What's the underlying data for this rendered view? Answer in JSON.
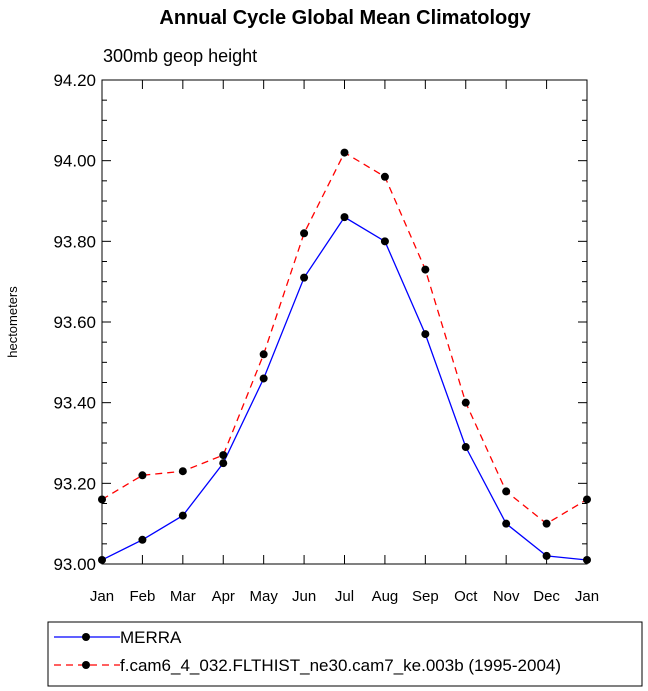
{
  "chart_data": {
    "type": "line",
    "title": "Annual Cycle Global Mean Climatology",
    "subtitle": "300mb geop height",
    "xlabel": "",
    "ylabel": "hectometers",
    "categories": [
      "Jan",
      "Feb",
      "Mar",
      "Apr",
      "May",
      "Jun",
      "Jul",
      "Aug",
      "Sep",
      "Oct",
      "Nov",
      "Dec",
      "Jan"
    ],
    "ylim": [
      93.0,
      94.2
    ],
    "y_major_ticks": [
      93.0,
      93.2,
      93.4,
      93.6,
      93.8,
      94.0,
      94.2
    ],
    "y_tick_labels": [
      "93.00",
      "93.20",
      "93.40",
      "93.60",
      "93.80",
      "94.00",
      "94.20"
    ],
    "y_minor_step": 0.05,
    "grid": false,
    "legend_position": "bottom",
    "series": [
      {
        "name": "MERRA",
        "color": "#0000ff",
        "style": "solid",
        "values": [
          93.01,
          93.06,
          93.12,
          93.25,
          93.46,
          93.71,
          93.86,
          93.8,
          93.57,
          93.29,
          93.1,
          93.02,
          93.01
        ]
      },
      {
        "name": "f.cam6_4_032.FLTHIST_ne30.cam7_ke.003b (1995-2004)",
        "color": "#ff0000",
        "style": "dashed",
        "values": [
          93.16,
          93.22,
          93.23,
          93.27,
          93.52,
          93.82,
          94.02,
          93.96,
          93.73,
          93.4,
          93.18,
          93.1,
          93.16
        ]
      }
    ]
  }
}
